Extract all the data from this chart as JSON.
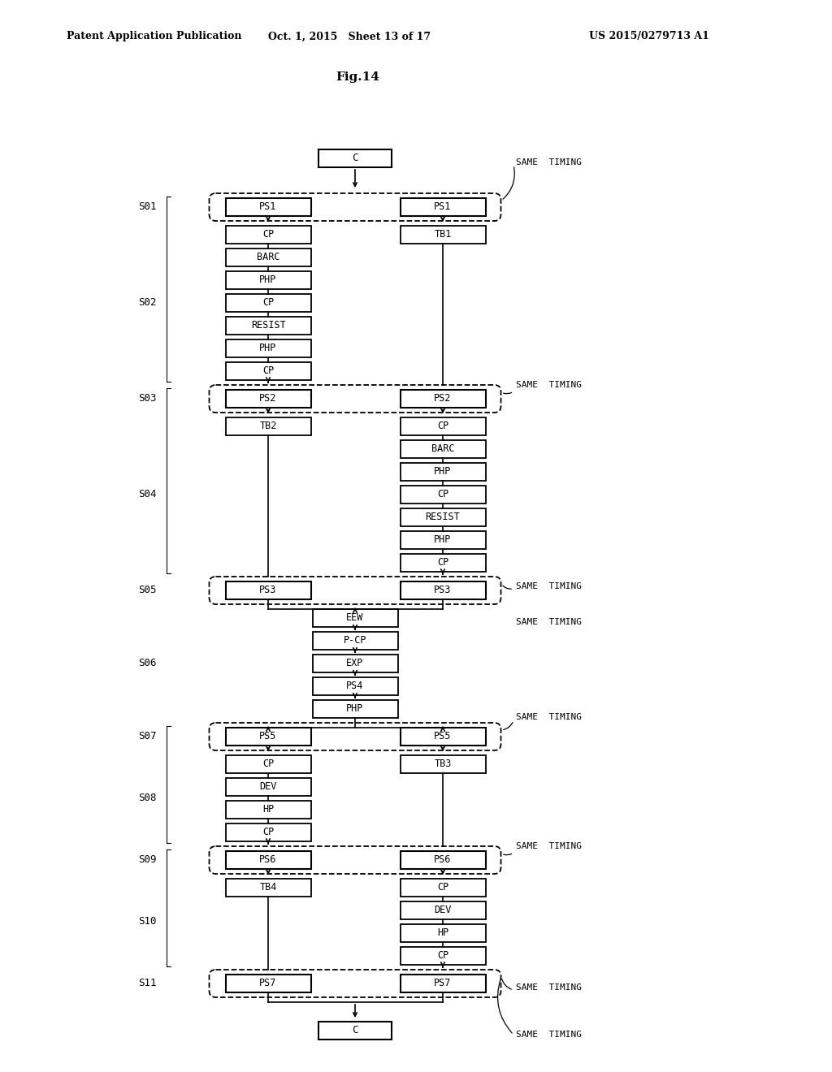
{
  "title_fig": "Fig.14",
  "header_left": "Patent Application Publication",
  "header_mid": "Oct. 1, 2015   Sheet 13 of 17",
  "header_right": "US 2015/0279713 A1",
  "background_color": "#ffffff",
  "fig_width": 10.24,
  "fig_height": 13.2,
  "dpi": 100
}
